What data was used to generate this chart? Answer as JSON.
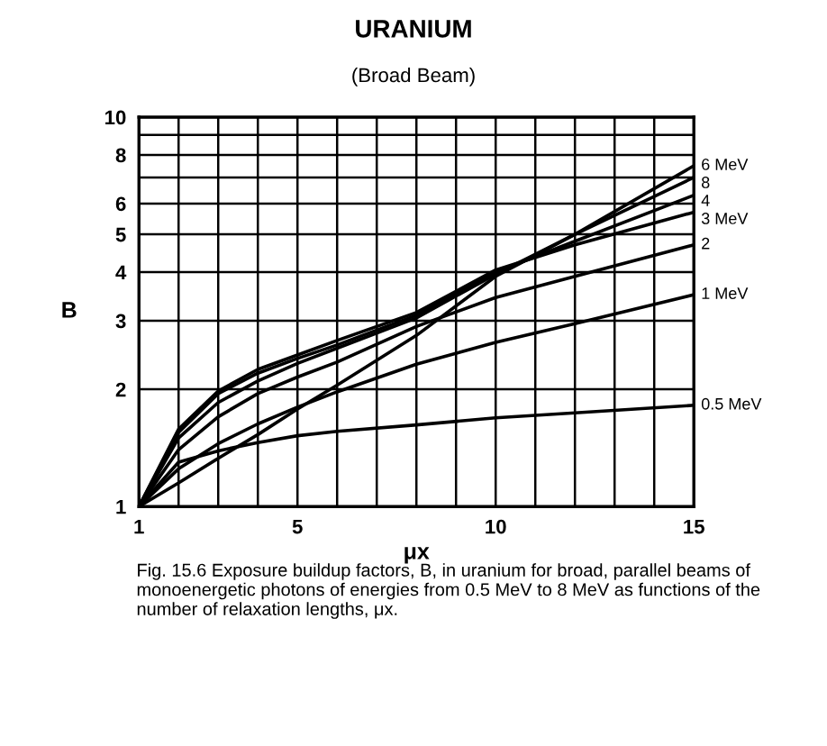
{
  "chart_data": {
    "type": "line",
    "title": "URANIUM",
    "subtitle": "(Broad Beam)",
    "xlabel": "μx",
    "ylabel": "B",
    "x": [
      1,
      2,
      3,
      4,
      5,
      6,
      8,
      10,
      12,
      15
    ],
    "series": [
      {
        "name": "6 MeV",
        "color": "#000000",
        "values": [
          1,
          1.15,
          1.33,
          1.53,
          1.78,
          2.05,
          2.75,
          3.9,
          5.0,
          7.5
        ]
      },
      {
        "name": "8",
        "color": "#000000",
        "values": [
          1,
          1.5,
          1.85,
          2.1,
          2.33,
          2.55,
          3.05,
          3.95,
          5.0,
          7.0
        ]
      },
      {
        "name": "4",
        "color": "#000000",
        "values": [
          1,
          1.55,
          1.95,
          2.2,
          2.4,
          2.6,
          3.1,
          4.0,
          4.8,
          6.3
        ]
      },
      {
        "name": "3 MeV",
        "color": "#000000",
        "values": [
          1,
          1.58,
          1.98,
          2.25,
          2.45,
          2.67,
          3.15,
          4.05,
          4.7,
          5.7
        ]
      },
      {
        "name": "2",
        "color": "#000000",
        "values": [
          1,
          1.4,
          1.7,
          1.95,
          2.15,
          2.35,
          2.9,
          3.44,
          3.9,
          4.7
        ]
      },
      {
        "name": "1 MeV",
        "color": "#000000",
        "values": [
          1,
          1.25,
          1.45,
          1.63,
          1.8,
          1.97,
          2.32,
          2.64,
          2.95,
          3.5
        ]
      },
      {
        "name": "0.5 MeV",
        "color": "#000000",
        "values": [
          1,
          1.3,
          1.39,
          1.46,
          1.52,
          1.56,
          1.62,
          1.69,
          1.74,
          1.82
        ]
      }
    ],
    "log": "y",
    "xlim": [
      1,
      15
    ],
    "ylim": [
      1,
      10
    ],
    "xticks": [
      1,
      {
        "value": 2,
        "label": null
      },
      {
        "value": 3,
        "label": null
      },
      {
        "value": 4,
        "label": null
      },
      5,
      {
        "value": 6,
        "label": null
      },
      {
        "value": 7,
        "label": null
      },
      {
        "value": 8,
        "label": null
      },
      {
        "value": 9,
        "label": null
      },
      10,
      {
        "value": 11,
        "label": null
      },
      {
        "value": 12,
        "label": null
      },
      {
        "value": 13,
        "label": null
      },
      {
        "value": 14,
        "label": null
      },
      15
    ],
    "yticks": [
      1,
      2,
      3,
      4,
      5,
      6,
      {
        "value": 7,
        "label": null
      },
      8,
      {
        "value": 9,
        "label": null
      },
      10
    ],
    "grid": true,
    "legend": false,
    "marker": "none",
    "line_style": "solid",
    "annotations": [
      "Fig. 15.6 Exposure buildup factors, B, in uranium for broad, parallel beams of monoenergetic photons of energies from 0.5 MeV to 8 MeV as functions of the number of relaxation lengths, μx."
    ]
  }
}
